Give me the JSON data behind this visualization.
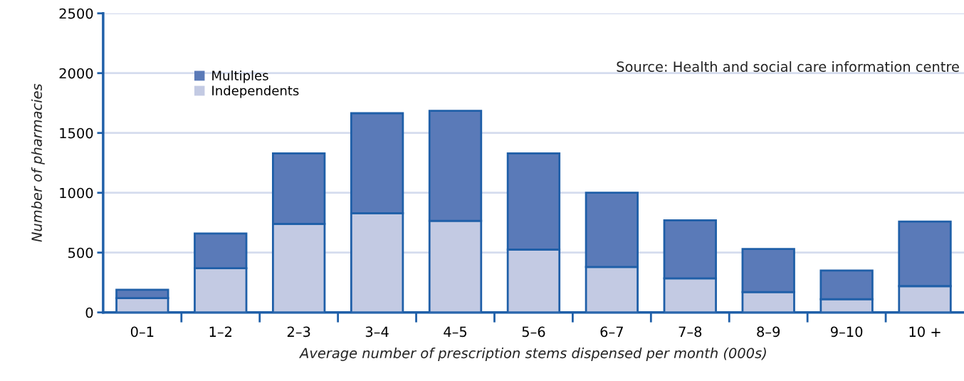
{
  "chart_data": {
    "type": "bar",
    "stacked": true,
    "xlabel": "Average number of prescription stems dispensed per month (000s)",
    "ylabel": "Number of pharmacies",
    "categories": [
      "0–1",
      "1–2",
      "2–3",
      "3–4",
      "4–5",
      "5–6",
      "6–7",
      "7–8",
      "8–9",
      "9–10",
      "10 +"
    ],
    "series": [
      {
        "name": "Independents",
        "color": "#c3cae3",
        "values": [
          120,
          370,
          740,
          830,
          765,
          525,
          380,
          285,
          170,
          110,
          220
        ]
      },
      {
        "name": "Multiples",
        "color": "#5a7ab8",
        "values": [
          70,
          290,
          590,
          835,
          920,
          805,
          620,
          485,
          360,
          240,
          540
        ]
      }
    ],
    "ylim": [
      0,
      2500
    ],
    "yticks": [
      0,
      500,
      1000,
      1500,
      2000,
      2500
    ],
    "grid": "y",
    "legend": "top left",
    "annotations": [
      "Source: Health and social care information centre"
    ]
  }
}
